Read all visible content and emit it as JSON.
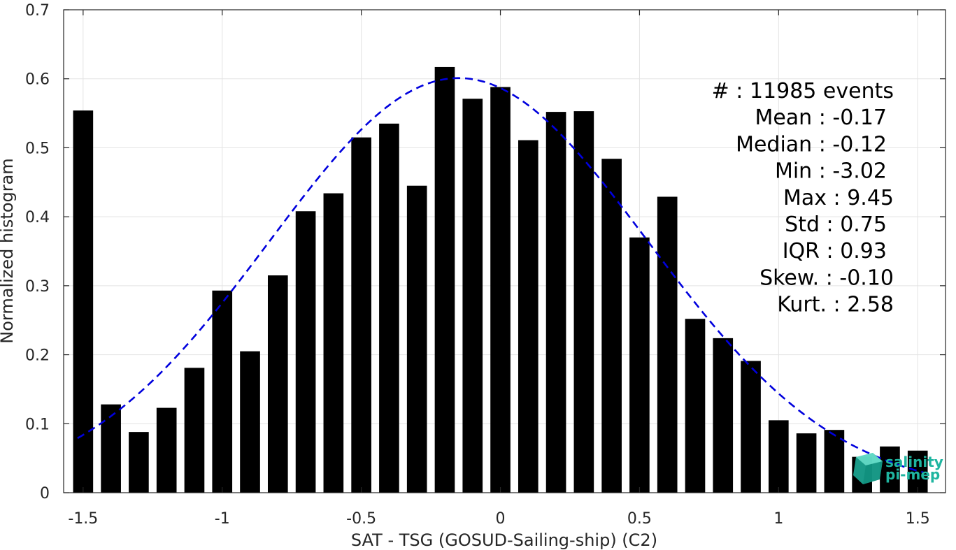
{
  "chart_data": {
    "type": "bar",
    "xlabel": "SAT - TSG (GOSUD-Sailing-ship) (C2)",
    "ylabel": "Normalized histogram",
    "xlim": [
      -1.57,
      1.6
    ],
    "ylim": [
      0,
      0.7
    ],
    "xticks": [
      -1.5,
      -1,
      -0.5,
      0,
      0.5,
      1,
      1.5
    ],
    "xtick_labels": [
      "-1.5",
      "-1",
      "-0.5",
      "0",
      "0.5",
      "1",
      "1.5"
    ],
    "yticks": [
      0,
      0.1,
      0.2,
      0.3,
      0.4,
      0.5,
      0.6,
      0.7
    ],
    "ytick_labels": [
      "0",
      "0.1",
      "0.2",
      "0.3",
      "0.4",
      "0.5",
      "0.6",
      "0.7"
    ],
    "grid": true,
    "bar_width": 0.072,
    "bar_color": "#000000",
    "bars": {
      "x": [
        -1.5,
        -1.4,
        -1.3,
        -1.2,
        -1.1,
        -1.0,
        -0.9,
        -0.8,
        -0.7,
        -0.6,
        -0.5,
        -0.4,
        -0.3,
        -0.2,
        -0.1,
        0.0,
        0.1,
        0.2,
        0.3,
        0.4,
        0.5,
        0.6,
        0.7,
        0.8,
        0.9,
        1.0,
        1.1,
        1.2,
        1.3,
        1.4,
        1.5
      ],
      "values": [
        0.554,
        0.128,
        0.088,
        0.123,
        0.181,
        0.293,
        0.205,
        0.315,
        0.408,
        0.434,
        0.515,
        0.535,
        0.445,
        0.617,
        0.571,
        0.588,
        0.511,
        0.552,
        0.553,
        0.484,
        0.37,
        0.429,
        0.252,
        0.224,
        0.191,
        0.105,
        0.086,
        0.091,
        0.052,
        0.067,
        0.061
      ]
    },
    "fit_curve": {
      "style": "dashed",
      "color": "#0000dd",
      "mean": -0.15,
      "std": 0.68,
      "peak": 0.601,
      "x_range": [
        -1.52,
        1.52
      ]
    },
    "stats": [
      {
        "label": "#  : 11985 events"
      },
      {
        "label": "Mean : -0.17"
      },
      {
        "label": "Median : -0.12"
      },
      {
        "label": "Min : -3.02"
      },
      {
        "label": "Max : 9.45"
      },
      {
        "label": "Std : 0.75"
      },
      {
        "label": "IQR : 0.93"
      },
      {
        "label": "Skew. : -0.10"
      },
      {
        "label": "Kurt. : 2.58"
      }
    ]
  },
  "logo": {
    "line1": "salinity",
    "line2": "pi-mep",
    "icon": "cube-logo-icon",
    "color": "#1fb5a0"
  }
}
